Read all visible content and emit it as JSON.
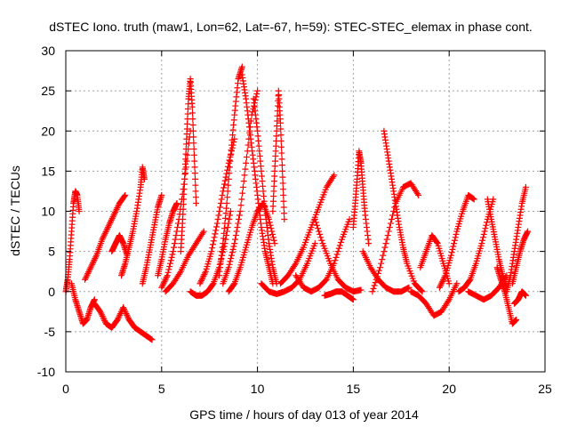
{
  "colors": {
    "series": "#ff0000",
    "grid": "#a0a0a0",
    "frame": "#000000"
  },
  "chart_data": {
    "type": "scatter",
    "marker": "plus",
    "title": "dSTEC Iono. truth (maw1, Lon=62, Lat=-67, h=59): STEC-STEC_elemax in phase cont.",
    "xlabel": "GPS time / hours of day 013 of year 2014",
    "ylabel": "dSTEC  / TECUs",
    "xlim": [
      0,
      25
    ],
    "ylim": [
      -10,
      30
    ],
    "xticks": [
      0,
      5,
      10,
      15,
      20,
      25
    ],
    "yticks": [
      -10,
      -5,
      0,
      5,
      10,
      15,
      20,
      25,
      30
    ],
    "grid": true,
    "series": [
      {
        "x": [
          0.0,
          0.1,
          0.2,
          0.3,
          0.4,
          0.5,
          0.6,
          0.7
        ],
        "y": [
          0.0,
          1.5,
          4.0,
          7.5,
          11.0,
          12.5,
          12.0,
          10.0
        ]
      },
      {
        "x": [
          0.3,
          0.5,
          0.7,
          0.9,
          1.1,
          1.3,
          1.5
        ],
        "y": [
          1.0,
          -1.0,
          -2.5,
          -4.0,
          -3.5,
          -2.0,
          -1.0
        ]
      },
      {
        "x": [
          1.0,
          1.3,
          1.6,
          1.9,
          2.2,
          2.5,
          2.8,
          3.1
        ],
        "y": [
          1.5,
          3.0,
          4.5,
          6.5,
          8.0,
          9.5,
          11.0,
          12.0
        ]
      },
      {
        "x": [
          1.5,
          1.8,
          2.1,
          2.4,
          2.7,
          3.0
        ],
        "y": [
          -1.5,
          -2.5,
          -4.0,
          -4.5,
          -3.5,
          -2.0
        ]
      },
      {
        "x": [
          2.4,
          2.6,
          2.8,
          3.0,
          3.2
        ],
        "y": [
          5.0,
          6.0,
          7.0,
          6.0,
          4.5
        ]
      },
      {
        "x": [
          2.9,
          3.1,
          3.3,
          3.5,
          3.7,
          3.9,
          4.0,
          4.1
        ],
        "y": [
          2.0,
          3.5,
          5.5,
          7.5,
          10.0,
          13.0,
          15.5,
          14.0
        ]
      },
      {
        "x": [
          3.0,
          3.3,
          3.6,
          3.9,
          4.2,
          4.5
        ],
        "y": [
          -2.0,
          -3.5,
          -4.5,
          -5.0,
          -5.5,
          -6.0
        ]
      },
      {
        "x": [
          4.0,
          4.2,
          4.4,
          4.6,
          4.8,
          5.0
        ],
        "y": [
          1.0,
          3.0,
          5.5,
          8.0,
          10.5,
          12.0
        ]
      },
      {
        "x": [
          4.8,
          5.0,
          5.2,
          5.4,
          5.6,
          5.8
        ],
        "y": [
          2.0,
          4.0,
          6.5,
          8.5,
          10.0,
          11.0
        ]
      },
      {
        "x": [
          5.0,
          5.3,
          5.6,
          5.9,
          6.2,
          6.5
        ],
        "y": [
          0.5,
          2.0,
          5.0,
          9.0,
          14.0,
          20.0
        ]
      },
      {
        "x": [
          5.2,
          5.6,
          6.0,
          6.4,
          6.8,
          7.2
        ],
        "y": [
          0.0,
          1.0,
          2.5,
          4.5,
          6.0,
          7.5
        ]
      },
      {
        "x": [
          6.0,
          6.1,
          6.2,
          6.3,
          6.4,
          6.5,
          6.6,
          6.7,
          6.8
        ],
        "y": [
          5.0,
          9.0,
          14.0,
          19.0,
          24.0,
          26.5,
          23.0,
          17.0,
          11.0
        ]
      },
      {
        "x": [
          6.5,
          6.8,
          7.1,
          7.4,
          7.7,
          8.0,
          8.3,
          8.6
        ],
        "y": [
          0.0,
          -0.5,
          -0.5,
          0.0,
          1.0,
          3.0,
          6.0,
          10.0
        ]
      },
      {
        "x": [
          7.0,
          7.3,
          7.6,
          7.9,
          8.2,
          8.5,
          8.8
        ],
        "y": [
          1.0,
          2.5,
          5.0,
          8.5,
          12.5,
          16.0,
          19.0
        ]
      },
      {
        "x": [
          8.0,
          8.2,
          8.4,
          8.6,
          8.8,
          9.0,
          9.2
        ],
        "y": [
          2.0,
          6.0,
          11.0,
          17.0,
          22.0,
          26.5,
          28.0
        ]
      },
      {
        "x": [
          8.2,
          8.5,
          8.8,
          9.1,
          9.4,
          9.7,
          10.0
        ],
        "y": [
          1.0,
          3.0,
          6.0,
          10.0,
          16.0,
          22.0,
          25.0
        ]
      },
      {
        "x": [
          8.5,
          8.8,
          9.1,
          9.4,
          9.7,
          10.0,
          10.3,
          10.6,
          10.9
        ],
        "y": [
          0.0,
          1.0,
          3.0,
          5.5,
          8.0,
          10.0,
          11.0,
          9.0,
          6.0
        ]
      },
      {
        "x": [
          9.2,
          9.4,
          9.6,
          9.8,
          10.0,
          10.2,
          10.4,
          10.6,
          10.8
        ],
        "y": [
          27.0,
          24.0,
          20.0,
          16.0,
          12.0,
          8.0,
          5.0,
          3.0,
          1.0
        ]
      },
      {
        "x": [
          9.8,
          10.0,
          10.2,
          10.4,
          10.6,
          10.8,
          11.0
        ],
        "y": [
          24.0,
          20.0,
          15.0,
          10.0,
          6.0,
          3.0,
          1.0
        ]
      },
      {
        "x": [
          10.2,
          10.6,
          11.0,
          11.4,
          11.8,
          12.2,
          12.6,
          13.0
        ],
        "y": [
          1.0,
          0.0,
          -0.3,
          0.0,
          0.5,
          1.5,
          3.5,
          6.0
        ]
      },
      {
        "x": [
          10.8,
          10.9,
          11.0,
          11.1,
          11.2,
          11.3,
          11.4
        ],
        "y": [
          10.0,
          15.0,
          20.0,
          25.0,
          21.0,
          15.0,
          9.0
        ]
      },
      {
        "x": [
          11.2,
          11.6,
          12.0,
          12.4,
          12.8,
          13.2,
          13.6,
          14.0
        ],
        "y": [
          1.0,
          2.0,
          3.5,
          5.5,
          8.0,
          10.5,
          13.0,
          14.5
        ]
      },
      {
        "x": [
          12.0,
          12.4,
          12.8,
          13.2,
          13.6,
          14.0,
          14.4,
          14.8
        ],
        "y": [
          2.0,
          0.5,
          0.0,
          0.5,
          1.5,
          3.5,
          6.5,
          9.0
        ]
      },
      {
        "x": [
          13.0,
          13.4,
          13.8,
          14.2,
          14.6,
          15.0,
          15.4
        ],
        "y": [
          9.0,
          6.0,
          3.5,
          1.5,
          0.5,
          0.0,
          0.2
        ]
      },
      {
        "x": [
          13.5,
          13.8,
          14.1,
          14.4,
          14.7,
          15.0
        ],
        "y": [
          -0.5,
          -0.3,
          0.0,
          0.0,
          -0.5,
          -1.0
        ]
      },
      {
        "x": [
          15.0,
          15.1,
          15.2,
          15.3,
          15.4,
          15.5,
          15.6,
          15.8
        ],
        "y": [
          8.0,
          11.0,
          14.0,
          17.5,
          16.0,
          13.0,
          10.0,
          6.0
        ]
      },
      {
        "x": [
          15.5,
          15.9,
          16.3,
          16.7,
          17.1,
          17.5,
          17.9
        ],
        "y": [
          5.0,
          3.0,
          1.5,
          0.5,
          0.0,
          0.0,
          0.5
        ]
      },
      {
        "x": [
          16.0,
          16.4,
          16.8,
          17.2,
          17.6,
          18.0,
          18.4
        ],
        "y": [
          0.0,
          3.0,
          7.0,
          11.0,
          13.0,
          13.5,
          12.0
        ]
      },
      {
        "x": [
          16.6,
          16.8,
          17.0,
          17.2,
          17.4,
          17.6,
          17.8,
          18.2,
          18.6
        ],
        "y": [
          20.0,
          17.0,
          14.0,
          11.0,
          8.0,
          5.5,
          3.5,
          1.0,
          0.0
        ]
      },
      {
        "x": [
          18.0,
          18.4,
          18.8,
          19.2,
          19.6,
          20.0,
          20.4
        ],
        "y": [
          0.0,
          -0.5,
          -1.5,
          -3.0,
          -2.5,
          -1.0,
          1.0
        ]
      },
      {
        "x": [
          18.5,
          18.8,
          19.1,
          19.4,
          19.7,
          20.0
        ],
        "y": [
          3.0,
          5.0,
          7.0,
          6.0,
          3.5,
          1.0
        ]
      },
      {
        "x": [
          19.5,
          19.8,
          20.1,
          20.4,
          20.7,
          21.0,
          21.3
        ],
        "y": [
          0.5,
          2.0,
          4.5,
          7.5,
          10.0,
          12.0,
          11.5
        ]
      },
      {
        "x": [
          20.5,
          20.8,
          21.1,
          21.4,
          21.7,
          22.0,
          22.3
        ],
        "y": [
          0.0,
          0.5,
          1.5,
          3.5,
          6.0,
          9.0,
          11.5
        ]
      },
      {
        "x": [
          21.0,
          21.4,
          21.8,
          22.2,
          22.6,
          23.0
        ],
        "y": [
          0.0,
          -0.5,
          -1.0,
          -0.5,
          0.5,
          2.0
        ]
      },
      {
        "x": [
          22.0,
          22.2,
          22.4,
          22.6,
          22.8,
          23.0
        ],
        "y": [
          11.5,
          9.0,
          6.5,
          4.0,
          2.0,
          0.5
        ]
      },
      {
        "x": [
          22.5,
          22.7,
          22.9,
          23.1,
          23.3,
          23.5
        ],
        "y": [
          3.0,
          1.5,
          0.0,
          -2.0,
          -4.0,
          -3.5
        ]
      },
      {
        "x": [
          23.0,
          23.2,
          23.4,
          23.6,
          23.8,
          24.0
        ],
        "y": [
          0.0,
          2.0,
          5.0,
          8.0,
          11.0,
          13.0
        ]
      },
      {
        "x": [
          23.3,
          23.5,
          23.7,
          23.9,
          24.1
        ],
        "y": [
          1.0,
          3.0,
          5.0,
          6.5,
          7.5
        ]
      },
      {
        "x": [
          23.4,
          23.6,
          23.8,
          24.0
        ],
        "y": [
          -1.5,
          -1.0,
          0.0,
          -0.5
        ]
      }
    ]
  }
}
